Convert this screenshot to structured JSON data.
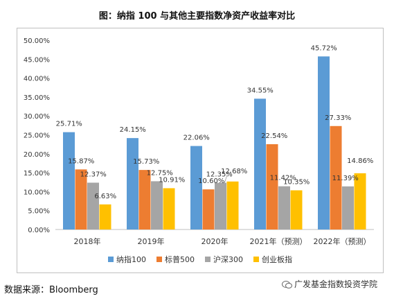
{
  "page": {
    "title": "图：纳指 100 与其他主要指数净资产收益率对比",
    "source": "数据来源：Bloomberg",
    "watermark": "广发基金指数投资学院",
    "watermark_icon": "wechat-icon"
  },
  "chart_data": {
    "type": "bar",
    "title": "图：纳指 100 与其他主要指数净资产收益率对比",
    "xlabel": "",
    "ylabel": "",
    "categories": [
      "2018年",
      "2019年",
      "2020年",
      "2021年（预测）",
      "2022年（预测）"
    ],
    "series": [
      {
        "name": "纳指100",
        "color": "#5b9bd5",
        "values": [
          25.71,
          24.15,
          22.06,
          34.55,
          45.72
        ]
      },
      {
        "name": "标普500",
        "color": "#ed7d31",
        "values": [
          15.87,
          15.73,
          10.6,
          22.54,
          27.33
        ]
      },
      {
        "name": "沪深300",
        "color": "#a5a5a5",
        "values": [
          12.37,
          12.75,
          12.35,
          11.42,
          11.39
        ]
      },
      {
        "name": "创业板指",
        "color": "#ffc000",
        "values": [
          6.63,
          10.91,
          12.68,
          10.35,
          14.86
        ]
      }
    ],
    "ylim": [
      0,
      50
    ],
    "yticks": [
      "0.00%",
      "5.00%",
      "10.00%",
      "15.00%",
      "20.00%",
      "25.00%",
      "30.00%",
      "35.00%",
      "40.00%",
      "45.00%",
      "50.00%"
    ],
    "data_labels": [
      [
        "25.71%",
        "24.15%",
        "22.06%",
        "34.55%",
        "45.72%"
      ],
      [
        "15.87%",
        "15.73%",
        "10.60%",
        "22.54%",
        "27.33%"
      ],
      [
        "12.37%",
        "12.75%",
        "12.35%",
        "11.42%",
        "11.39%"
      ],
      [
        "6.63%",
        "10.91%",
        "12.68%",
        "10.35%",
        "14.86%"
      ]
    ],
    "legend_position": "bottom",
    "grid": false
  }
}
